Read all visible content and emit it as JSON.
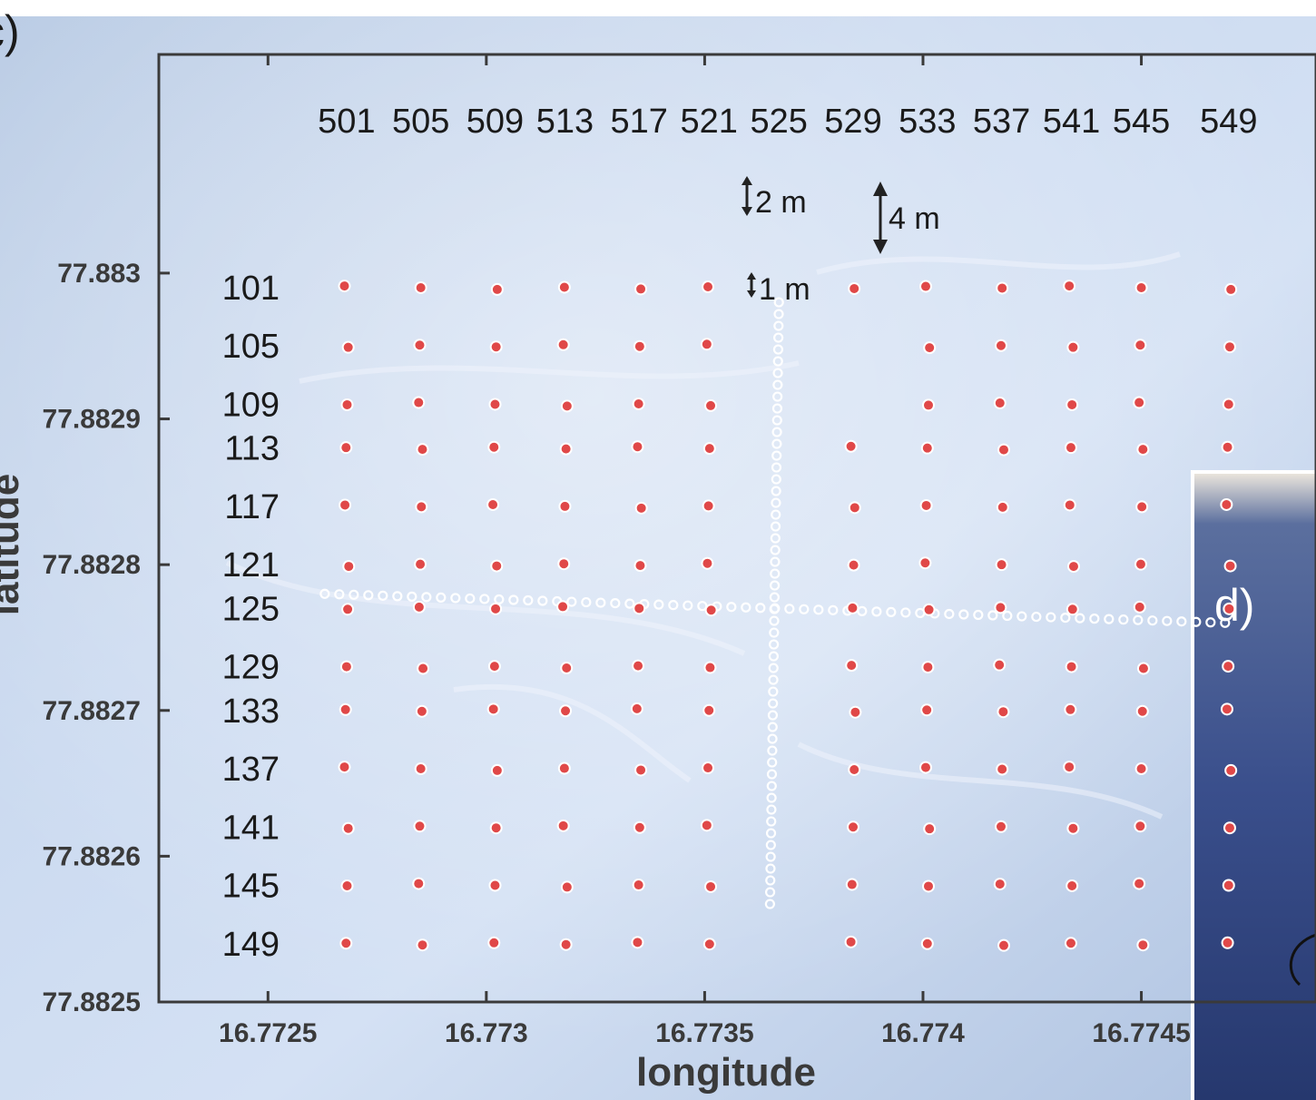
{
  "panel_labels": {
    "left": "c)",
    "inset": "d)"
  },
  "chart_data": {
    "type": "scatter",
    "xlabel": "longitude",
    "ylabel": "latitude",
    "xlim": [
      16.77225,
      16.7749
    ],
    "ylim": [
      77.8825,
      77.88315
    ],
    "xticks": [
      16.7725,
      16.773,
      16.7735,
      16.774,
      16.7745
    ],
    "xtick_labels": [
      "16.7725",
      "16.773",
      "16.7735",
      "16.774",
      "16.7745"
    ],
    "yticks": [
      77.883,
      77.8829,
      77.8828,
      77.8827,
      77.8826,
      77.8825
    ],
    "ytick_labels": [
      "77.883",
      "77.8829",
      "77.8828",
      "77.8827",
      "77.8826",
      "77.8825"
    ],
    "grid": false,
    "background": "aerial photograph of snow surface",
    "column_labels": [
      "501",
      "505",
      "509",
      "513",
      "517",
      "521",
      "525",
      "529",
      "533",
      "537",
      "541",
      "545",
      "549"
    ],
    "row_labels": [
      "101",
      "105",
      "109",
      "113",
      "117",
      "121",
      "125",
      "129",
      "133",
      "137",
      "141",
      "145",
      "149"
    ],
    "grid_stations": {
      "marker_color": "#e04848",
      "lon_left": [
        16.77268,
        16.77285,
        16.77302,
        16.77318,
        16.77335,
        16.77351
      ],
      "lon_right": [
        16.77384,
        16.77401,
        16.77418,
        16.77434,
        16.7745,
        16.7747
      ],
      "lat": [
        77.88299,
        77.88295,
        77.88291,
        77.88288,
        77.88284,
        77.8828,
        77.88277,
        77.88273,
        77.8827,
        77.88266,
        77.88262,
        77.88258,
        77.88254
      ],
      "omitted": [
        [
          "105",
          "529"
        ],
        [
          "109",
          "529"
        ]
      ]
    },
    "transects": {
      "marker_color": "#ffffff",
      "vertical_lon": 16.77367,
      "vertical_lat_range": [
        77.88298,
        77.88256
      ],
      "horizontal_lat_range": [
        77.88278,
        77.88276
      ],
      "horizontal_lon_range": [
        16.77263,
        16.7747
      ]
    },
    "annotations": [
      "2 m",
      "4 m",
      "1 m"
    ]
  }
}
